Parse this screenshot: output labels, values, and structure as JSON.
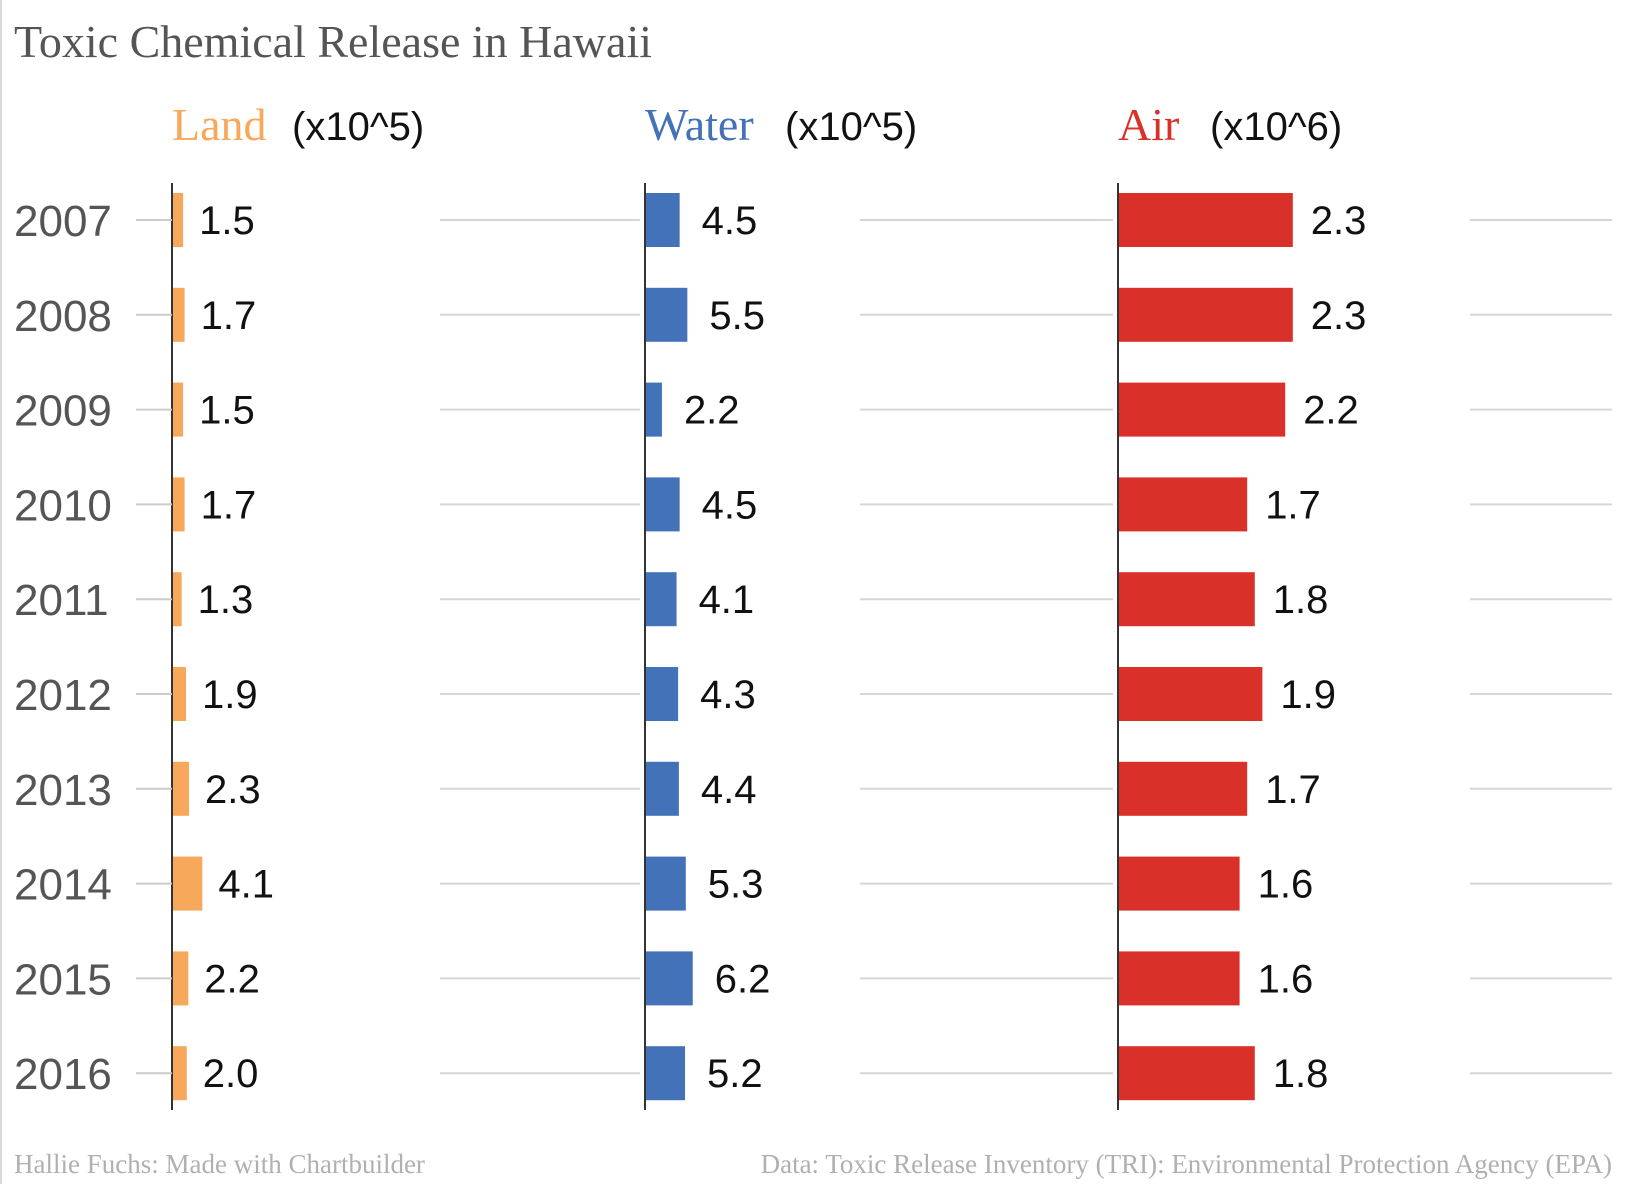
{
  "chart_data": {
    "type": "bar",
    "title": "Toxic Chemical Release in Hawaii",
    "categories": [
      "2007",
      "2008",
      "2009",
      "2010",
      "2011",
      "2012",
      "2013",
      "2014",
      "2015",
      "2016"
    ],
    "series": [
      {
        "name": "Land",
        "unit": "(x10^5)",
        "color": "#f8a85a",
        "values": [
          1.5,
          1.7,
          1.5,
          1.7,
          1.3,
          1.9,
          2.3,
          4.1,
          2.2,
          2.0
        ],
        "labels": [
          "1.5",
          "1.7",
          "1.5",
          "1.7",
          "1.3",
          "1.9",
          "2.3",
          "4.1",
          "2.2",
          "2.0"
        ]
      },
      {
        "name": "Water",
        "unit": "(x10^5)",
        "color": "#4472b8",
        "values": [
          4.5,
          5.5,
          2.2,
          4.5,
          4.1,
          4.3,
          4.4,
          5.3,
          6.2,
          5.2
        ],
        "labels": [
          "4.5",
          "5.5",
          "2.2",
          "4.5",
          "4.1",
          "4.3",
          "4.4",
          "5.3",
          "6.2",
          "5.2"
        ]
      },
      {
        "name": "Air",
        "unit": "(x10^6)",
        "color": "#d93129",
        "values": [
          2.3,
          2.3,
          2.2,
          1.7,
          1.8,
          1.9,
          1.7,
          1.6,
          1.6,
          1.8
        ],
        "labels": [
          "2.3",
          "2.3",
          "2.2",
          "1.7",
          "1.8",
          "1.9",
          "1.7",
          "1.6",
          "1.6",
          "1.8"
        ]
      }
    ],
    "grid": true,
    "orientation": "horizontal",
    "legend": "none"
  },
  "footer": {
    "credit": "Hallie Fuchs: Made with Chartbuilder",
    "source": "Data: Toxic Release Inventory (TRI): Environmental Protection Agency (EPA)"
  }
}
